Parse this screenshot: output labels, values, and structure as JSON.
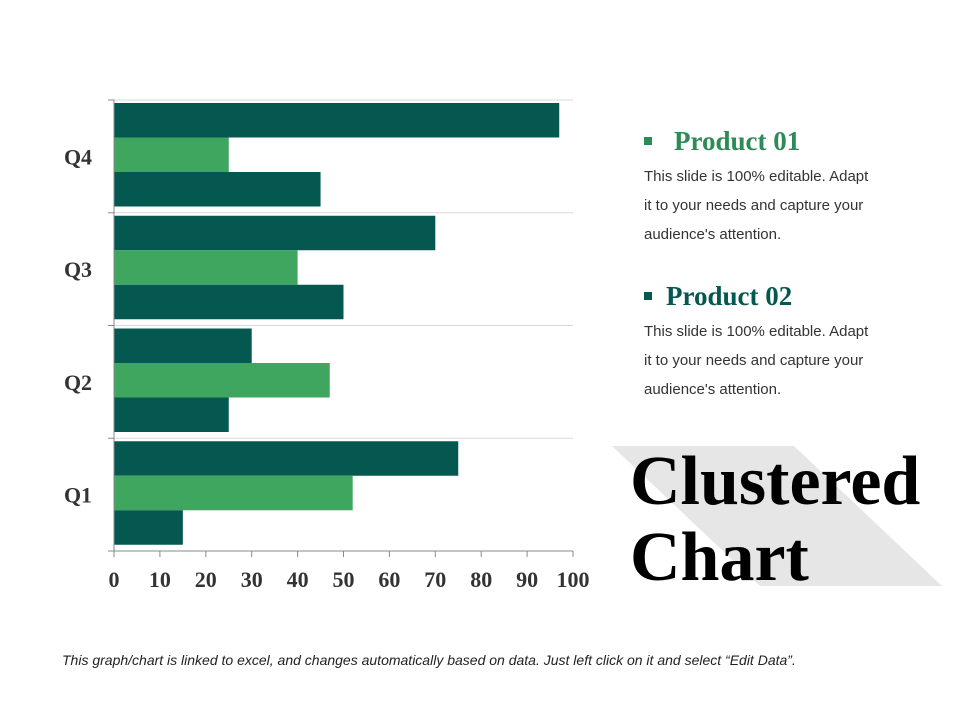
{
  "chart_data": {
    "type": "bar",
    "orientation": "horizontal",
    "categories": [
      "Q1",
      "Q2",
      "Q3",
      "Q4"
    ],
    "series": [
      {
        "values": [
          75,
          30,
          70,
          97
        ],
        "color": "#045850"
      },
      {
        "values": [
          52,
          47,
          40,
          25
        ],
        "color": "#3FA660"
      },
      {
        "values": [
          15,
          25,
          50,
          45
        ],
        "color": "#045850"
      }
    ],
    "xlim": [
      0,
      100
    ],
    "xticks": [
      "0",
      "10",
      "20",
      "30",
      "40",
      "50",
      "60",
      "70",
      "80",
      "90",
      "100"
    ],
    "grid": true
  },
  "legend": [
    {
      "title": "Product 01",
      "color": "#2E8B57",
      "lines": [
        "This slide is 100% editable. Adapt",
        "it to your needs and capture your",
        "audience's attention."
      ]
    },
    {
      "title": "Product 02",
      "color": "#045850",
      "lines": [
        "This slide is 100% editable. Adapt",
        "it to your needs and capture your",
        "audience's attention."
      ]
    }
  ],
  "title_lines": [
    "Clustered",
    "Chart"
  ],
  "footer": "This graph/chart is linked to excel, and changes automatically based on data. Just left click on it and select “Edit Data”."
}
